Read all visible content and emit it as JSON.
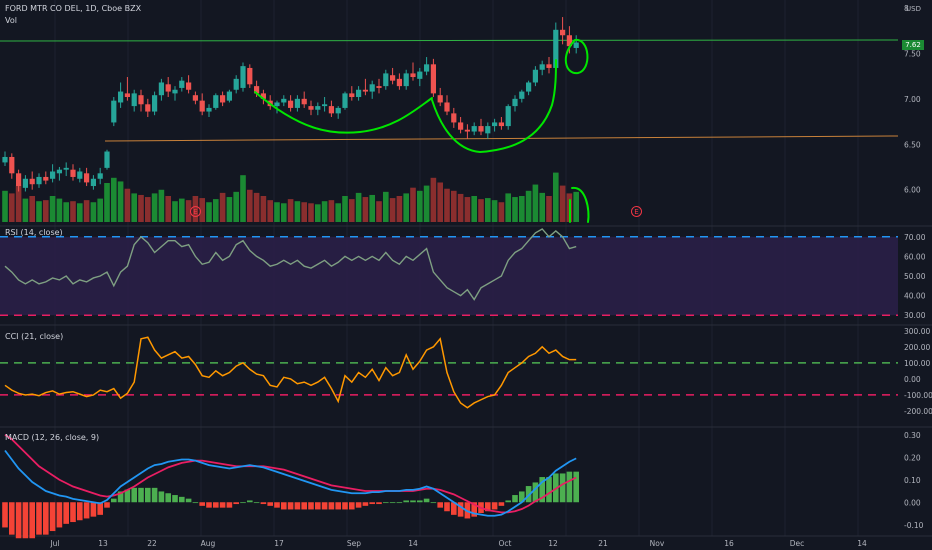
{
  "header": {
    "symbol": "FORD MTR CO DEL, 1D, Cboe BZX",
    "volume_label": "Vol",
    "currency": "USD"
  },
  "colors": {
    "bg": "#131722",
    "up": "#26a69a",
    "down": "#ef5350",
    "vol_up": "#1b8a33",
    "vol_down": "#8a2e2e",
    "rsi": "#7e9f82",
    "cci": "#ff9800",
    "macd": "#2196f3",
    "signal": "#e91e63",
    "hist_up": "#4caf50",
    "hist_down": "#f44336",
    "drawing": "#00e600",
    "trend": "#c8813a"
  },
  "price_tag": "7.62",
  "event_markers": [
    "E",
    "E"
  ],
  "x_axis_labels": [
    "Jul",
    "13",
    "22",
    "Aug",
    "17",
    "Sep",
    "14",
    "Oct",
    "12",
    "21",
    "Nov",
    "16",
    "Dec",
    "14"
  ],
  "price_axis": [
    "8",
    "7.50",
    "7.00",
    "6.50",
    "6.00"
  ],
  "panes": {
    "rsi": {
      "label": "RSI (14, close)",
      "axis": [
        "70.00",
        "60.00",
        "50.00",
        "40.00",
        "30.00"
      ]
    },
    "cci": {
      "label": "CCI (21, close)",
      "axis": [
        "300.00",
        "200.00",
        "100.00",
        "0.00",
        "-100.00",
        "-200.00"
      ]
    },
    "macd": {
      "label": "MACD (12, 26, close, 9)",
      "axis": [
        "0.30",
        "0.20",
        "0.10",
        "0.00",
        "-0.10"
      ]
    }
  },
  "chart_data": {
    "type": "candlestick",
    "ohlc": [
      [
        6.3,
        6.42,
        6.26,
        6.36
      ],
      [
        6.36,
        6.4,
        6.12,
        6.18
      ],
      [
        6.18,
        6.22,
        5.98,
        6.04
      ],
      [
        6.02,
        6.16,
        5.98,
        6.12
      ],
      [
        6.12,
        6.2,
        6.0,
        6.06
      ],
      [
        6.06,
        6.18,
        6.02,
        6.14
      ],
      [
        6.14,
        6.2,
        6.06,
        6.1
      ],
      [
        6.12,
        6.28,
        6.08,
        6.2
      ],
      [
        6.18,
        6.25,
        6.1,
        6.22
      ],
      [
        6.22,
        6.3,
        6.15,
        6.24
      ],
      [
        6.22,
        6.28,
        6.1,
        6.14
      ],
      [
        6.12,
        6.24,
        6.08,
        6.2
      ],
      [
        6.18,
        6.24,
        6.04,
        6.08
      ],
      [
        6.04,
        6.16,
        6.0,
        6.12
      ],
      [
        6.12,
        6.24,
        6.06,
        6.18
      ],
      [
        6.24,
        6.44,
        6.22,
        6.42
      ],
      [
        6.74,
        7.02,
        6.7,
        6.98
      ],
      [
        6.96,
        7.18,
        6.9,
        7.08
      ],
      [
        7.06,
        7.24,
        6.98,
        7.02
      ],
      [
        6.92,
        7.1,
        6.86,
        7.06
      ],
      [
        7.04,
        7.1,
        6.86,
        6.94
      ],
      [
        6.94,
        7.0,
        6.8,
        6.86
      ],
      [
        6.86,
        7.08,
        6.82,
        7.04
      ],
      [
        7.04,
        7.22,
        6.98,
        7.18
      ],
      [
        7.16,
        7.24,
        7.02,
        7.08
      ],
      [
        7.06,
        7.14,
        6.98,
        7.1
      ],
      [
        7.12,
        7.24,
        7.08,
        7.2
      ],
      [
        7.18,
        7.26,
        7.06,
        7.1
      ],
      [
        7.04,
        7.08,
        6.94,
        6.98
      ],
      [
        6.98,
        7.06,
        6.82,
        6.86
      ],
      [
        6.86,
        6.94,
        6.8,
        6.9
      ],
      [
        6.9,
        7.06,
        6.88,
        7.04
      ],
      [
        7.04,
        7.08,
        6.92,
        6.96
      ],
      [
        6.98,
        7.1,
        6.96,
        7.08
      ],
      [
        7.1,
        7.26,
        7.06,
        7.22
      ],
      [
        7.12,
        7.4,
        7.08,
        7.36
      ],
      [
        7.34,
        7.38,
        7.12,
        7.16
      ],
      [
        7.14,
        7.2,
        7.02,
        7.06
      ],
      [
        7.06,
        7.1,
        6.94,
        7.0
      ],
      [
        6.98,
        7.04,
        6.88,
        6.92
      ],
      [
        6.92,
        6.98,
        6.84,
        6.96
      ],
      [
        6.96,
        7.04,
        6.92,
        7.0
      ],
      [
        6.98,
        7.04,
        6.86,
        6.9
      ],
      [
        6.9,
        7.04,
        6.86,
        7.0
      ],
      [
        7.0,
        7.08,
        6.9,
        6.94
      ],
      [
        6.92,
        6.98,
        6.82,
        6.88
      ],
      [
        6.88,
        6.96,
        6.82,
        6.92
      ],
      [
        6.92,
        7.02,
        6.86,
        6.94
      ],
      [
        6.92,
        6.98,
        6.8,
        6.84
      ],
      [
        6.84,
        6.92,
        6.78,
        6.9
      ],
      [
        6.9,
        7.08,
        6.88,
        7.06
      ],
      [
        7.06,
        7.14,
        6.98,
        7.02
      ],
      [
        7.02,
        7.14,
        6.98,
        7.1
      ],
      [
        7.1,
        7.22,
        7.04,
        7.08
      ],
      [
        7.08,
        7.2,
        7.0,
        7.16
      ],
      [
        7.14,
        7.22,
        7.06,
        7.12
      ],
      [
        7.14,
        7.32,
        7.1,
        7.28
      ],
      [
        7.26,
        7.34,
        7.16,
        7.2
      ],
      [
        7.22,
        7.28,
        7.1,
        7.14
      ],
      [
        7.14,
        7.32,
        7.1,
        7.28
      ],
      [
        7.28,
        7.4,
        7.2,
        7.24
      ],
      [
        7.22,
        7.34,
        7.14,
        7.3
      ],
      [
        7.3,
        7.46,
        7.26,
        7.38
      ],
      [
        7.38,
        7.44,
        7.02,
        7.06
      ],
      [
        7.04,
        7.12,
        6.92,
        6.96
      ],
      [
        6.96,
        7.04,
        6.82,
        6.86
      ],
      [
        6.84,
        6.9,
        6.68,
        6.74
      ],
      [
        6.74,
        6.8,
        6.62,
        6.66
      ],
      [
        6.66,
        6.72,
        6.56,
        6.64
      ],
      [
        6.64,
        6.74,
        6.6,
        6.7
      ],
      [
        6.7,
        6.78,
        6.6,
        6.64
      ],
      [
        6.62,
        6.74,
        6.56,
        6.7
      ],
      [
        6.7,
        6.78,
        6.64,
        6.74
      ],
      [
        6.74,
        6.8,
        6.66,
        6.7
      ],
      [
        6.7,
        6.94,
        6.66,
        6.92
      ],
      [
        6.92,
        7.04,
        6.86,
        7.0
      ],
      [
        7.0,
        7.1,
        6.96,
        7.08
      ],
      [
        7.08,
        7.2,
        7.04,
        7.18
      ],
      [
        7.18,
        7.36,
        7.14,
        7.32
      ],
      [
        7.32,
        7.42,
        7.26,
        7.38
      ],
      [
        7.38,
        7.46,
        7.28,
        7.34
      ],
      [
        7.34,
        7.84,
        7.3,
        7.76
      ],
      [
        7.76,
        7.9,
        7.6,
        7.7
      ],
      [
        7.7,
        7.8,
        7.5,
        7.58
      ],
      [
        7.56,
        7.7,
        7.5,
        7.62
      ]
    ],
    "volume": [
      [
        0.6,
        1
      ],
      [
        0.55,
        0
      ],
      [
        0.7,
        0
      ],
      [
        0.45,
        1
      ],
      [
        0.5,
        0
      ],
      [
        0.4,
        1
      ],
      [
        0.42,
        0
      ],
      [
        0.5,
        1
      ],
      [
        0.45,
        1
      ],
      [
        0.38,
        1
      ],
      [
        0.4,
        0
      ],
      [
        0.36,
        1
      ],
      [
        0.42,
        0
      ],
      [
        0.38,
        1
      ],
      [
        0.45,
        1
      ],
      [
        0.75,
        1
      ],
      [
        0.85,
        1
      ],
      [
        0.78,
        1
      ],
      [
        0.64,
        0
      ],
      [
        0.55,
        1
      ],
      [
        0.52,
        0
      ],
      [
        0.48,
        0
      ],
      [
        0.55,
        1
      ],
      [
        0.62,
        1
      ],
      [
        0.5,
        0
      ],
      [
        0.4,
        1
      ],
      [
        0.45,
        1
      ],
      [
        0.42,
        0
      ],
      [
        0.5,
        0
      ],
      [
        0.46,
        0
      ],
      [
        0.38,
        1
      ],
      [
        0.44,
        1
      ],
      [
        0.56,
        0
      ],
      [
        0.48,
        1
      ],
      [
        0.58,
        1
      ],
      [
        0.9,
        1
      ],
      [
        0.62,
        0
      ],
      [
        0.56,
        0
      ],
      [
        0.5,
        0
      ],
      [
        0.42,
        0
      ],
      [
        0.38,
        1
      ],
      [
        0.36,
        1
      ],
      [
        0.44,
        0
      ],
      [
        0.4,
        1
      ],
      [
        0.38,
        0
      ],
      [
        0.36,
        0
      ],
      [
        0.34,
        1
      ],
      [
        0.4,
        1
      ],
      [
        0.42,
        0
      ],
      [
        0.36,
        1
      ],
      [
        0.5,
        1
      ],
      [
        0.44,
        0
      ],
      [
        0.56,
        1
      ],
      [
        0.48,
        0
      ],
      [
        0.52,
        1
      ],
      [
        0.4,
        0
      ],
      [
        0.58,
        1
      ],
      [
        0.46,
        0
      ],
      [
        0.5,
        0
      ],
      [
        0.55,
        1
      ],
      [
        0.66,
        0
      ],
      [
        0.6,
        1
      ],
      [
        0.7,
        1
      ],
      [
        0.85,
        0
      ],
      [
        0.76,
        0
      ],
      [
        0.64,
        0
      ],
      [
        0.6,
        0
      ],
      [
        0.54,
        0
      ],
      [
        0.48,
        0
      ],
      [
        0.5,
        1
      ],
      [
        0.44,
        0
      ],
      [
        0.46,
        1
      ],
      [
        0.42,
        1
      ],
      [
        0.38,
        0
      ],
      [
        0.55,
        1
      ],
      [
        0.48,
        1
      ],
      [
        0.5,
        1
      ],
      [
        0.6,
        1
      ],
      [
        0.72,
        1
      ],
      [
        0.56,
        1
      ],
      [
        0.5,
        0
      ],
      [
        0.95,
        1
      ],
      [
        0.7,
        0
      ],
      [
        0.55,
        0
      ],
      [
        0.58,
        1
      ]
    ],
    "rsi": [
      55,
      52,
      48,
      46,
      48,
      46,
      47,
      49,
      48,
      50,
      46,
      48,
      47,
      49,
      50,
      52,
      45,
      52,
      55,
      66,
      70,
      67,
      62,
      65,
      68,
      68,
      65,
      66,
      60,
      56,
      57,
      62,
      58,
      60,
      66,
      68,
      63,
      60,
      58,
      55,
      56,
      58,
      56,
      58,
      55,
      54,
      56,
      58,
      55,
      57,
      60,
      58,
      60,
      58,
      60,
      58,
      62,
      58,
      56,
      60,
      58,
      61,
      64,
      52,
      48,
      44,
      42,
      40,
      43,
      38,
      44,
      46,
      48,
      50,
      58,
      62,
      64,
      68,
      72,
      74,
      70,
      73,
      70,
      64,
      65
    ],
    "cci": [
      -40,
      -70,
      -90,
      -100,
      -95,
      -105,
      -85,
      -75,
      -95,
      -85,
      -80,
      -95,
      -110,
      -100,
      -70,
      -80,
      -60,
      -120,
      -90,
      -20,
      250,
      260,
      180,
      130,
      150,
      170,
      130,
      140,
      90,
      20,
      10,
      50,
      20,
      40,
      80,
      100,
      60,
      30,
      20,
      -40,
      -50,
      10,
      0,
      -30,
      -20,
      -40,
      -20,
      10,
      -60,
      -140,
      20,
      -20,
      40,
      10,
      60,
      -10,
      70,
      20,
      40,
      150,
      60,
      110,
      180,
      200,
      250,
      40,
      -80,
      -150,
      -180,
      -150,
      -130,
      -110,
      -100,
      -40,
      40,
      70,
      100,
      140,
      160,
      200,
      160,
      180,
      140,
      120,
      120
    ],
    "macd": [
      0.23,
      0.19,
      0.15,
      0.12,
      0.09,
      0.07,
      0.05,
      0.04,
      0.03,
      0.025,
      0.015,
      0.01,
      0.005,
      0.0,
      -0.005,
      0.01,
      0.04,
      0.07,
      0.09,
      0.11,
      0.13,
      0.15,
      0.165,
      0.17,
      0.18,
      0.185,
      0.19,
      0.19,
      0.185,
      0.175,
      0.165,
      0.16,
      0.155,
      0.15,
      0.155,
      0.16,
      0.165,
      0.16,
      0.155,
      0.145,
      0.135,
      0.125,
      0.115,
      0.105,
      0.095,
      0.085,
      0.075,
      0.065,
      0.055,
      0.05,
      0.045,
      0.04,
      0.04,
      0.04,
      0.045,
      0.045,
      0.05,
      0.05,
      0.05,
      0.055,
      0.055,
      0.06,
      0.07,
      0.06,
      0.04,
      0.02,
      0.0,
      -0.02,
      -0.04,
      -0.05,
      -0.055,
      -0.06,
      -0.06,
      -0.055,
      -0.04,
      -0.02,
      0.0,
      0.03,
      0.06,
      0.09,
      0.11,
      0.14,
      0.16,
      0.18,
      0.195
    ],
    "signal": [
      0.3,
      0.28,
      0.25,
      0.22,
      0.19,
      0.16,
      0.14,
      0.12,
      0.1,
      0.085,
      0.07,
      0.06,
      0.05,
      0.04,
      0.03,
      0.025,
      0.03,
      0.04,
      0.055,
      0.07,
      0.09,
      0.11,
      0.125,
      0.14,
      0.155,
      0.165,
      0.175,
      0.18,
      0.185,
      0.185,
      0.18,
      0.175,
      0.17,
      0.165,
      0.16,
      0.16,
      0.16,
      0.16,
      0.16,
      0.155,
      0.15,
      0.145,
      0.135,
      0.125,
      0.115,
      0.105,
      0.095,
      0.085,
      0.075,
      0.07,
      0.065,
      0.06,
      0.055,
      0.05,
      0.05,
      0.05,
      0.05,
      0.05,
      0.05,
      0.05,
      0.05,
      0.055,
      0.06,
      0.06,
      0.055,
      0.045,
      0.035,
      0.02,
      0.005,
      -0.01,
      -0.025,
      -0.035,
      -0.04,
      -0.045,
      -0.045,
      -0.04,
      -0.03,
      -0.015,
      0.005,
      0.02,
      0.04,
      0.06,
      0.08,
      0.095,
      0.11
    ],
    "ylim_price": [
      5.6,
      8.0
    ],
    "ylim_rsi": [
      25,
      75
    ],
    "ylim_cci": [
      -300,
      330
    ],
    "ylim_macd": [
      -0.15,
      0.33
    ]
  }
}
